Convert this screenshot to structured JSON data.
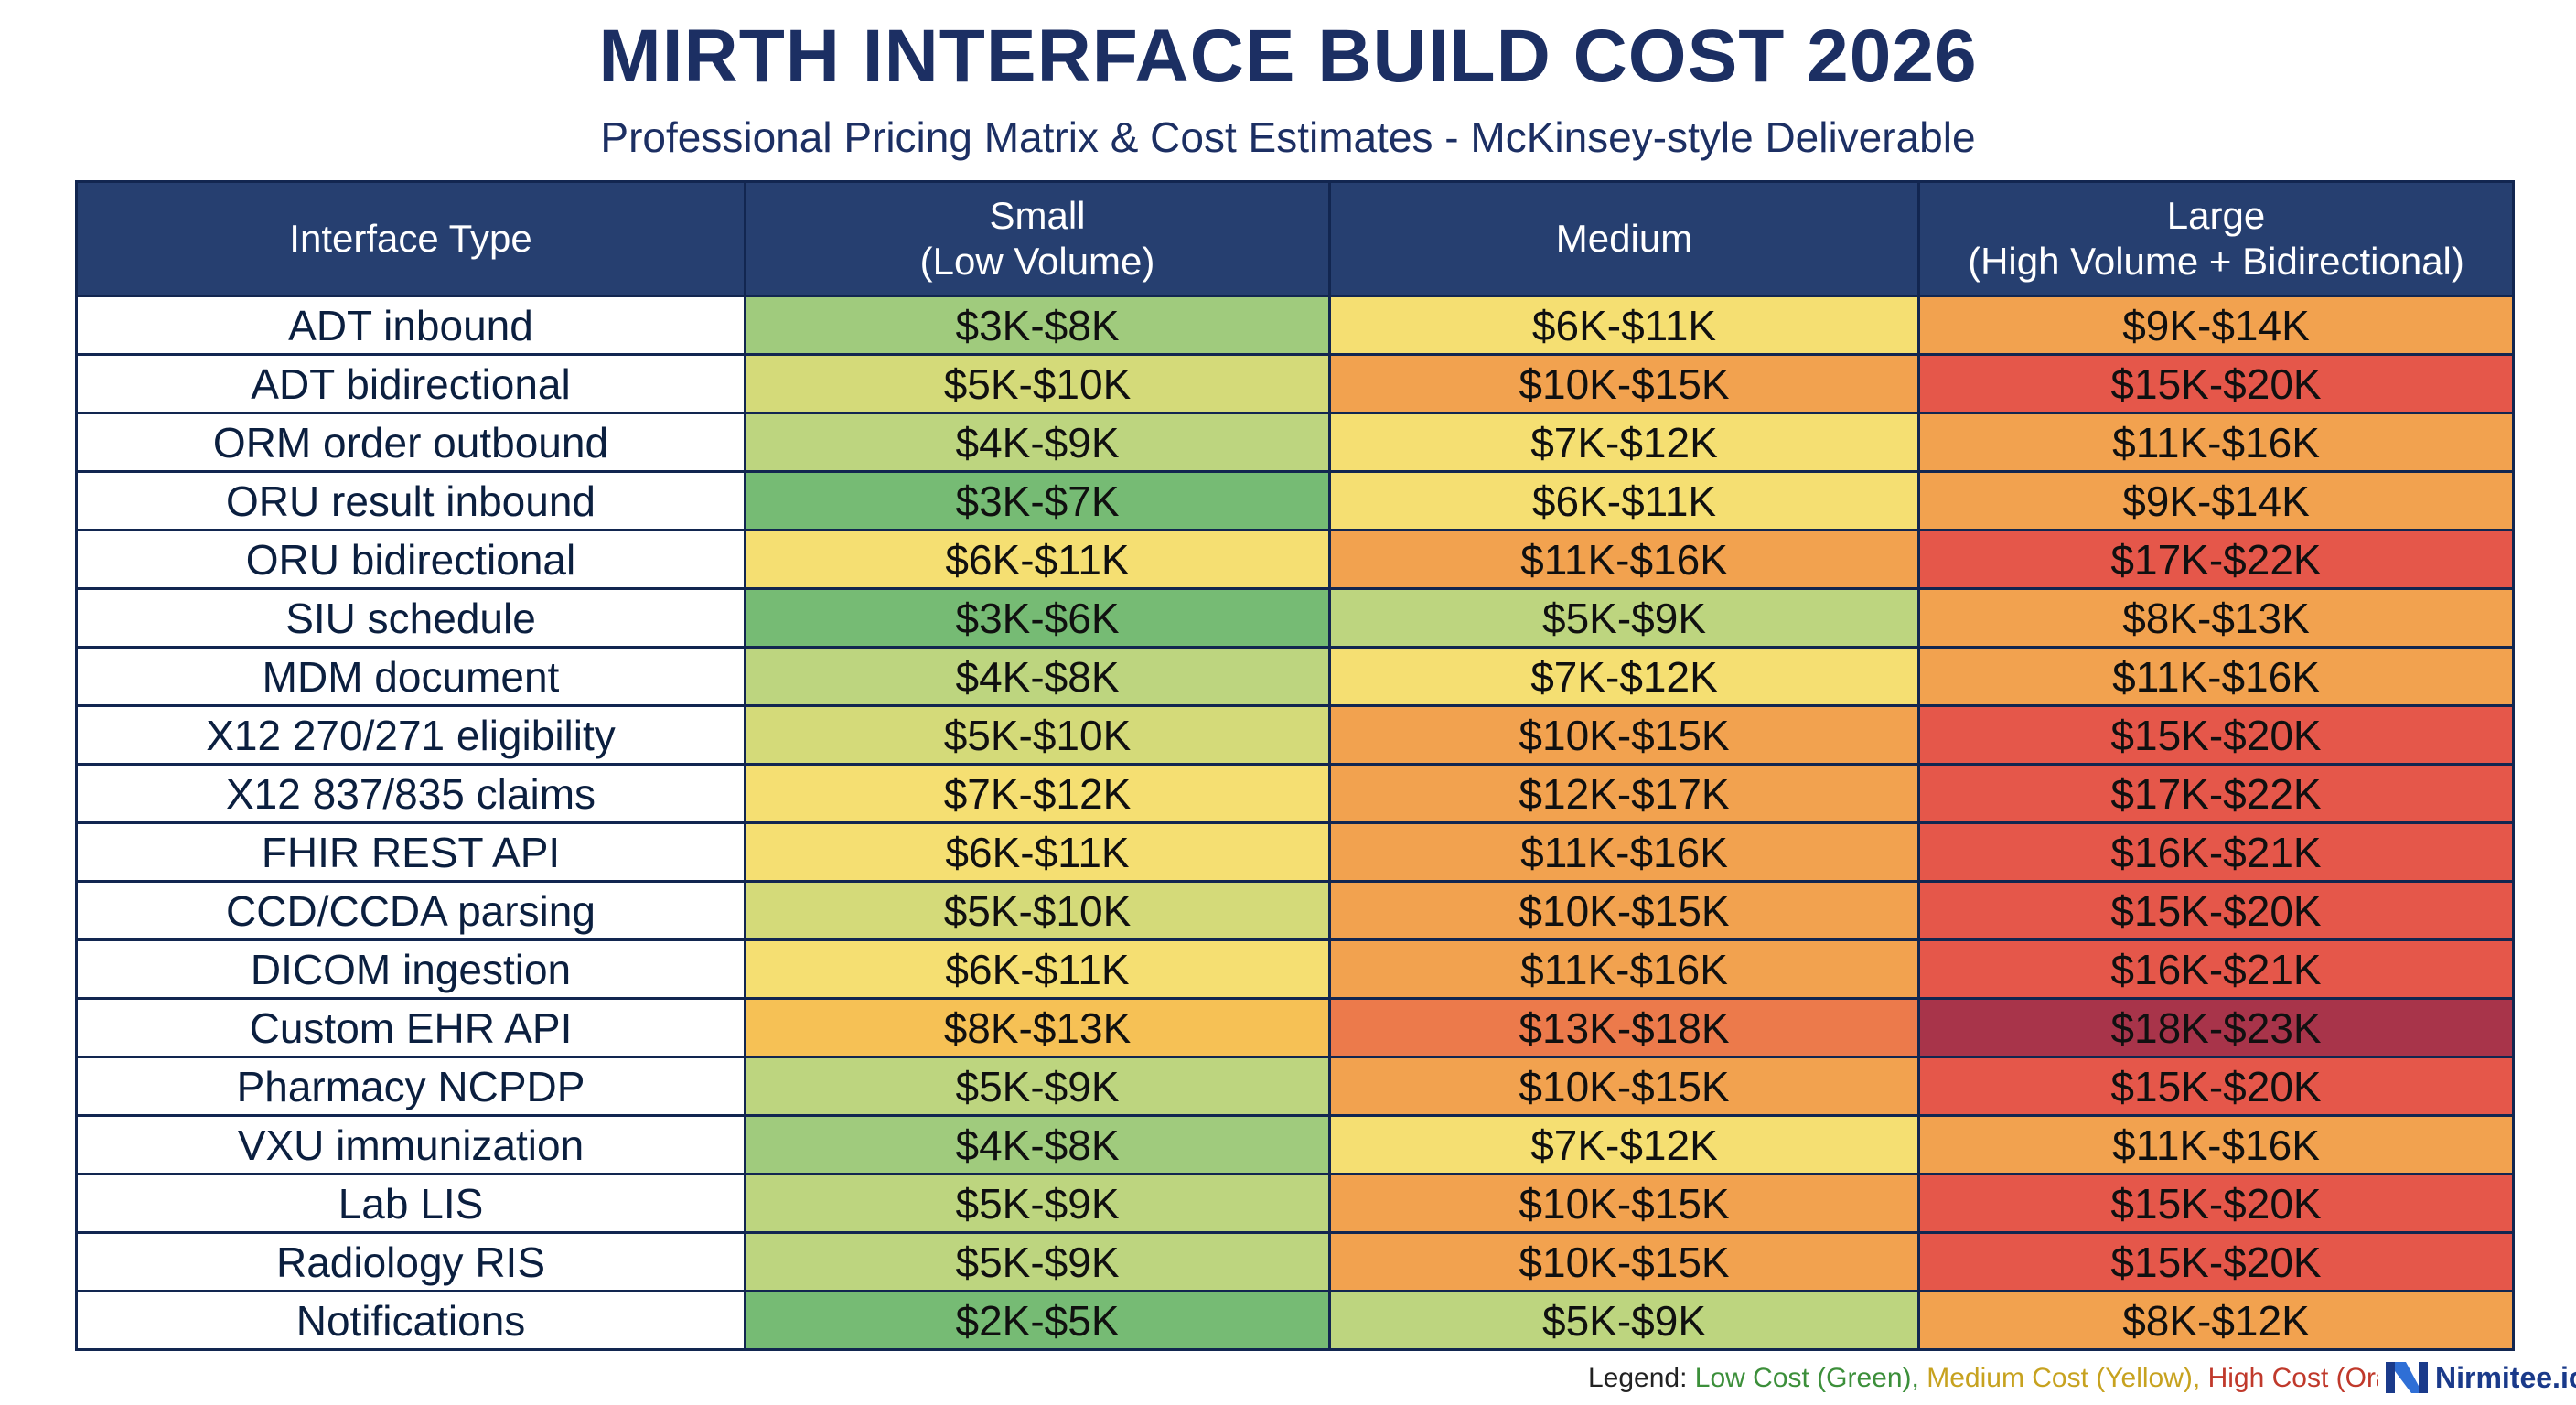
{
  "title": "MIRTH INTERFACE BUILD COST 2026",
  "subtitle": "Professional Pricing Matrix & Cost Estimates - McKinsey-style Deliverable",
  "columns": {
    "type": "Interface Type",
    "small_line1": "Small",
    "small_line2": "(Low Volume)",
    "medium": "Medium",
    "large_line1": "Large",
    "large_line2": "(High Volume + Bidirectional)"
  },
  "colors": {
    "header": "#263f70",
    "green_dark": "#76bb74",
    "green": "#a0cb7d",
    "green_light": "#bdd57f",
    "yellow_green": "#d4da79",
    "yellow": "#f5df72",
    "orange_yellow": "#f6c155",
    "orange": "#f2a24f",
    "red_orange": "#ec7a4b",
    "red": "#e5574a",
    "dark_red": "#a8344a"
  },
  "rows": [
    {
      "type": "ADT inbound",
      "small": "$3K-$8K",
      "medium": "$6K-$11K",
      "large": "$9K-$14K"
    },
    {
      "type": "ADT bidirectional",
      "small": "$5K-$10K",
      "medium": "$10K-$15K",
      "large": "$15K-$20K"
    },
    {
      "type": "ORM order outbound",
      "small": "$4K-$9K",
      "medium": "$7K-$12K",
      "large": "$11K-$16K"
    },
    {
      "type": "ORU result inbound",
      "small": "$3K-$7K",
      "medium": "$6K-$11K",
      "large": "$9K-$14K"
    },
    {
      "type": "ORU bidirectional",
      "small": "$6K-$11K",
      "medium": "$11K-$16K",
      "large": "$17K-$22K"
    },
    {
      "type": "SIU schedule",
      "small": "$3K-$6K",
      "medium": "$5K-$9K",
      "large": "$8K-$13K"
    },
    {
      "type": "MDM document",
      "small": "$4K-$8K",
      "medium": "$7K-$12K",
      "large": "$11K-$16K"
    },
    {
      "type": "X12 270/271 eligibility",
      "small": "$5K-$10K",
      "medium": "$10K-$15K",
      "large": "$15K-$20K"
    },
    {
      "type": "X12 837/835 claims",
      "small": "$7K-$12K",
      "medium": "$12K-$17K",
      "large": "$17K-$22K"
    },
    {
      "type": "FHIR REST API",
      "small": "$6K-$11K",
      "medium": "$11K-$16K",
      "large": "$16K-$21K"
    },
    {
      "type": "CCD/CCDA parsing",
      "small": "$5K-$10K",
      "medium": "$10K-$15K",
      "large": "$15K-$20K"
    },
    {
      "type": "DICOM ingestion",
      "small": "$6K-$11K",
      "medium": "$11K-$16K",
      "large": "$16K-$21K"
    },
    {
      "type": "Custom EHR API",
      "small": "$8K-$13K",
      "medium": "$13K-$18K",
      "large": "$18K-$23K"
    },
    {
      "type": "Pharmacy NCPDP",
      "small": "$5K-$9K",
      "medium": "$10K-$15K",
      "large": "$15K-$20K"
    },
    {
      "type": "VXU immunization",
      "small": "$4K-$8K",
      "medium": "$7K-$12K",
      "large": "$11K-$16K"
    },
    {
      "type": "Lab LIS",
      "small": "$5K-$9K",
      "medium": "$10K-$15K",
      "large": "$15K-$20K"
    },
    {
      "type": "Radiology RIS",
      "small": "$5K-$9K",
      "medium": "$10K-$15K",
      "large": "$15K-$20K"
    },
    {
      "type": "Notifications",
      "small": "$2K-$5K",
      "medium": "$5K-$9K",
      "large": "$8K-$12K"
    }
  ],
  "cell_colors": [
    [
      "green",
      "yellow",
      "orange"
    ],
    [
      "yellow_green",
      "orange",
      "red"
    ],
    [
      "green_light",
      "yellow",
      "orange"
    ],
    [
      "green_dark",
      "yellow",
      "orange"
    ],
    [
      "yellow",
      "orange",
      "red"
    ],
    [
      "green_dark",
      "green_light",
      "orange"
    ],
    [
      "green_light",
      "yellow",
      "orange"
    ],
    [
      "yellow_green",
      "orange",
      "red"
    ],
    [
      "yellow",
      "orange",
      "red"
    ],
    [
      "yellow",
      "orange",
      "red"
    ],
    [
      "yellow_green",
      "orange",
      "red"
    ],
    [
      "yellow",
      "orange",
      "red"
    ],
    [
      "orange_yellow",
      "red_orange",
      "dark_red"
    ],
    [
      "green_light",
      "orange",
      "red"
    ],
    [
      "green",
      "yellow",
      "orange"
    ],
    [
      "green_light",
      "orange",
      "red"
    ],
    [
      "green_light",
      "orange",
      "red"
    ],
    [
      "green_dark",
      "green_light",
      "orange"
    ]
  ],
  "legend": {
    "prefix": "Legend:",
    "low": "Low Cost (Green),",
    "medium": "Medium Cost (Yellow),",
    "high": "High Cost (Ora"
  },
  "brand": {
    "name": "Nirmitee.io",
    "icon": "nirmitee-logo-icon"
  }
}
